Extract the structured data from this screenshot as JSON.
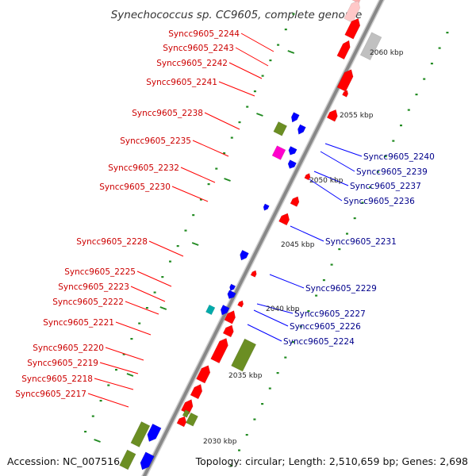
{
  "map": {
    "title": "Synechococcus sp. CC9605, complete genome",
    "accession": "Accession: NC_007516",
    "summary": "Topology: circular; Length: 2,510,659 bp; Genes: 2,698"
  },
  "colors": {
    "forward_gene": "#ff0000",
    "reverse_gene": "#0000ff",
    "forward_label": "#cc0000",
    "reverse_label": "#00008b",
    "rna_gene": "#6b8e23",
    "other_gene": "#c0c0c0",
    "magenta_gene": "#ff00cc",
    "cyan_gene": "#00aaaa",
    "backbone": "#888888",
    "ticks": "#228b22"
  },
  "scale_labels": [
    "2060 kbp",
    "2055 kbp",
    "2050 kbp",
    "2045 kbp",
    "2040 kbp",
    "2035 kbp",
    "2030 kbp"
  ],
  "forward_labels": [
    "Syncc9605_2244",
    "Syncc9605_2243",
    "Syncc9605_2242",
    "Syncc9605_2241",
    "Syncc9605_2238",
    "Syncc9605_2235",
    "Syncc9605_2232",
    "Syncc9605_2230",
    "Syncc9605_2228",
    "Syncc9605_2225",
    "Syncc9605_2223",
    "Syncc9605_2222",
    "Syncc9605_2221",
    "Syncc9605_2220",
    "Syncc9605_2219",
    "Syncc9605_2218",
    "Syncc9605_2217"
  ],
  "reverse_labels": [
    "Syncc9605_2240",
    "Syncc9605_2239",
    "Syncc9605_2237",
    "Syncc9605_2236",
    "Syncc9605_2231",
    "Syncc9605_2229",
    "Syncc9605_2227",
    "Syncc9605_2226",
    "Syncc9605_2224"
  ]
}
